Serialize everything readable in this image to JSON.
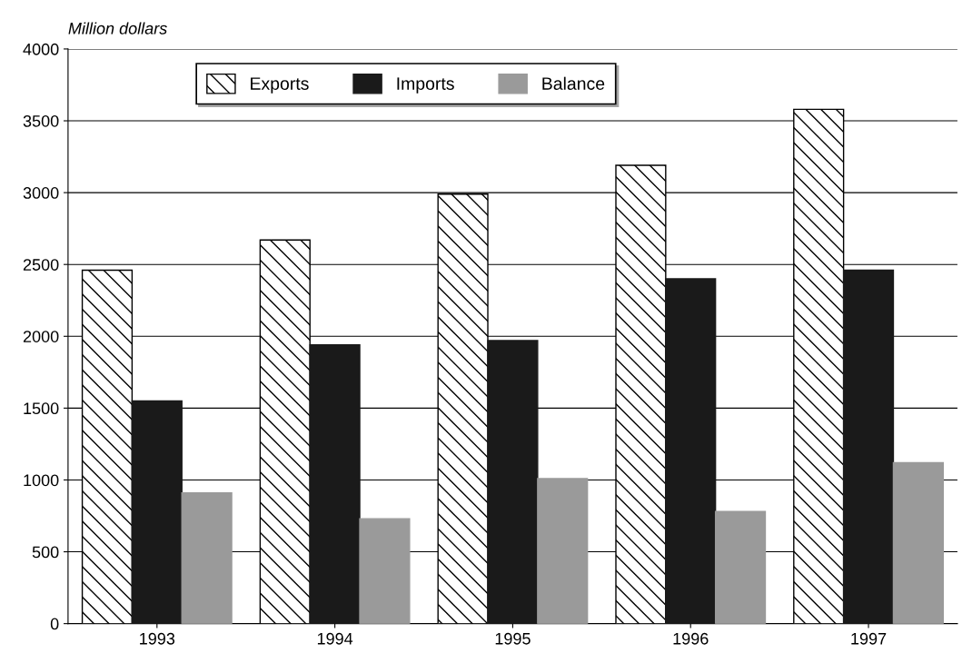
{
  "chart_data": {
    "type": "bar",
    "ylabel": "Million dollars",
    "categories": [
      "1993",
      "1994",
      "1995",
      "1996",
      "1997"
    ],
    "series": [
      {
        "name": "Exports",
        "color": "#000000",
        "values": [
          2460,
          2670,
          2990,
          3190,
          3580
        ]
      },
      {
        "name": "Imports",
        "color": "#1a1a1a",
        "values": [
          1550,
          1940,
          1970,
          2400,
          2460
        ]
      },
      {
        "name": "Balance",
        "color": "#9a9a9a",
        "values": [
          910,
          730,
          1010,
          780,
          1120
        ]
      }
    ],
    "ylim": [
      0,
      4000
    ],
    "yticks": [
      0,
      500,
      1000,
      1500,
      2000,
      2500,
      3000,
      3500,
      4000
    ],
    "grid": "y",
    "legend": "top"
  }
}
